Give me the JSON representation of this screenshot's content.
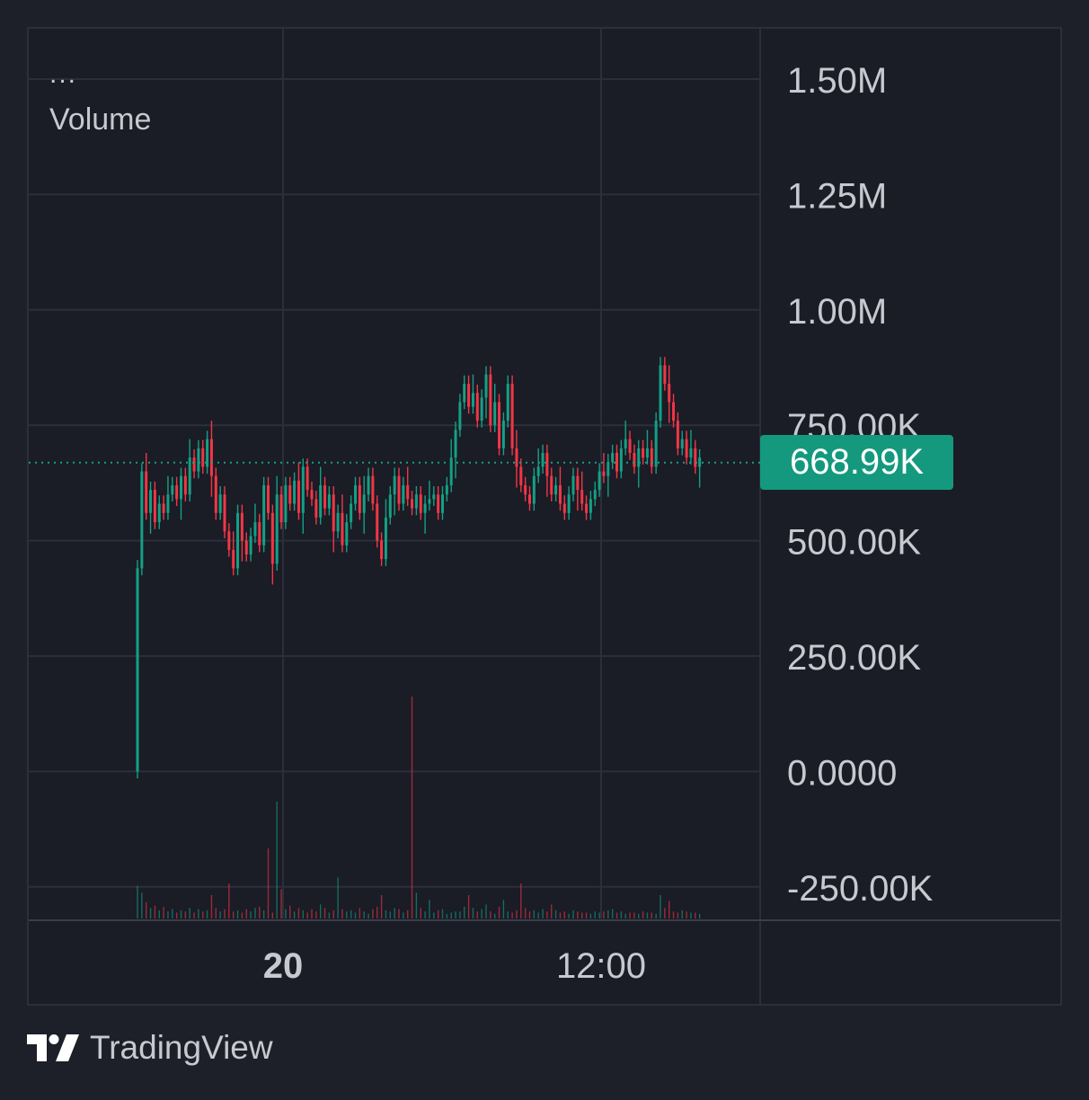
{
  "legend": {
    "menu": "...",
    "series_label": "Volume"
  },
  "price_tag": "668.99K",
  "brand": {
    "name": "TradingView",
    "logo_icon": "tradingview-logo-icon"
  },
  "colors": {
    "up": "#14a085",
    "down": "#f23645",
    "background": "#1a1c26",
    "grid": "#2c2f3b",
    "text": "#c7c9d1",
    "tag": "#14997e"
  },
  "chart_data": {
    "type": "candlestick",
    "yaxis_ticks": [
      "1.50M",
      "1.25M",
      "1.00M",
      "750.00K",
      "500.00K",
      "250.00K",
      "0.0000",
      "-250.00K"
    ],
    "ylim": [
      -320000,
      1600000
    ],
    "xaxis_ticks": [
      "20",
      "12:00"
    ],
    "last_value": 668990,
    "grid": true,
    "closes": [
      440000,
      650000,
      560000,
      610000,
      540000,
      580000,
      560000,
      600000,
      620000,
      590000,
      640000,
      600000,
      680000,
      650000,
      700000,
      660000,
      720000,
      640000,
      560000,
      600000,
      520000,
      480000,
      440000,
      560000,
      500000,
      470000,
      510000,
      540000,
      490000,
      620000,
      560000,
      450000,
      600000,
      540000,
      620000,
      580000,
      630000,
      560000,
      660000,
      610000,
      590000,
      550000,
      620000,
      570000,
      600000,
      520000,
      560000,
      490000,
      540000,
      580000,
      620000,
      560000,
      600000,
      640000,
      580000,
      500000,
      460000,
      550000,
      600000,
      640000,
      580000,
      620000,
      590000,
      570000,
      600000,
      560000,
      580000,
      590000,
      600000,
      560000,
      600000,
      620000,
      680000,
      740000,
      800000,
      840000,
      790000,
      820000,
      760000,
      810000,
      860000,
      750000,
      800000,
      700000,
      760000,
      840000,
      700000,
      660000,
      620000,
      600000,
      580000,
      640000,
      660000,
      690000,
      640000,
      600000,
      620000,
      580000,
      560000,
      600000,
      640000,
      610000,
      580000,
      560000,
      590000,
      610000,
      650000,
      640000,
      670000,
      690000,
      650000,
      700000,
      720000,
      690000,
      660000,
      700000,
      680000,
      700000,
      660000,
      760000,
      880000,
      840000,
      800000,
      760000,
      700000,
      720000,
      680000,
      700000,
      660000,
      680000
    ],
    "volumes": [
      28000,
      22000,
      14000,
      9000,
      11000,
      7000,
      10000,
      6000,
      8000,
      5000,
      7000,
      6000,
      9000,
      5000,
      8000,
      6000,
      7000,
      20000,
      9000,
      6000,
      8000,
      30000,
      6000,
      7000,
      5000,
      8000,
      6000,
      9000,
      10000,
      7000,
      60000,
      5000,
      100000,
      25000,
      8000,
      11000,
      6000,
      9000,
      7000,
      5000,
      8000,
      6000,
      12000,
      9000,
      5000,
      7000,
      35000,
      8000,
      6000,
      7000,
      5000,
      9000,
      6000,
      4000,
      8000,
      10000,
      20000,
      7000,
      6000,
      9000,
      8000,
      5000,
      7000,
      190000,
      22000,
      9000,
      6000,
      16000,
      5000,
      7000,
      8000,
      4000,
      5000,
      6000,
      6000,
      10000,
      20000,
      9000,
      6000,
      8000,
      12000,
      6000,
      4000,
      10000,
      16000,
      6000,
      5000,
      7000,
      30000,
      9000,
      6000,
      7000,
      5000,
      8000,
      6000,
      12000,
      7000,
      5000,
      6000,
      4000,
      7000,
      6000,
      5000,
      5000,
      4000,
      6000,
      5000,
      6000,
      7000,
      8000,
      5000,
      6000,
      4000,
      5000,
      5000,
      4000,
      6000,
      5000,
      5000,
      4000,
      20000,
      9000,
      15000,
      6000,
      5000,
      7000,
      6000,
      5000,
      5000,
      4000
    ]
  }
}
